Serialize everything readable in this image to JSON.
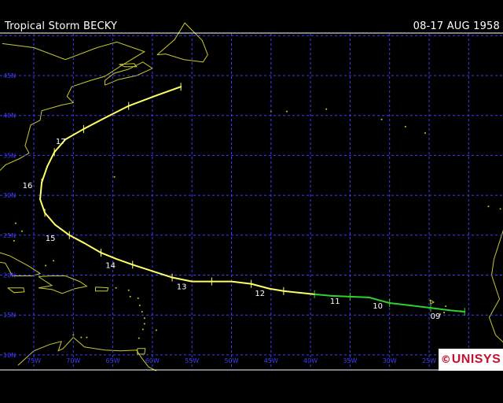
{
  "header": {
    "title": "Tropical Storm BECKY",
    "dates": "08-17 AUG 1958"
  },
  "map": {
    "lon_labels": [
      "75W",
      "70W",
      "65W",
      "60W",
      "55W",
      "50W",
      "45W",
      "40W",
      "35W",
      "30W",
      "25W"
    ],
    "lat_labels": [
      "45N",
      "40N",
      "35N",
      "30N",
      "25N",
      "20N",
      "15N",
      "10N"
    ],
    "grid_color": "#3c3cff",
    "coast_color": "#c8c832"
  },
  "track": {
    "legend_colors": {
      "tropical_depression": "#2fd12f",
      "tropical_storm": "#ffff66"
    },
    "points": [
      {
        "lon": -20.5,
        "lat": 15.4,
        "stage": "TD"
      },
      {
        "lon": -22.5,
        "lat": 15.6,
        "stage": "TD"
      },
      {
        "lon": -24.8,
        "lat": 15.9,
        "stage": "TD"
      },
      {
        "lon": -27.4,
        "lat": 16.2,
        "stage": "TD"
      },
      {
        "lon": -30.0,
        "lat": 16.5,
        "stage": "TD"
      },
      {
        "lon": -32.6,
        "lat": 17.2,
        "stage": "TD"
      },
      {
        "lon": -35.0,
        "lat": 17.3,
        "stage": "TD"
      },
      {
        "lon": -37.3,
        "lat": 17.4,
        "stage": "TD"
      },
      {
        "lon": -39.5,
        "lat": 17.6,
        "stage": "TD"
      },
      {
        "lon": -41.5,
        "lat": 17.8,
        "stage": "TS"
      },
      {
        "lon": -43.4,
        "lat": 18.0,
        "stage": "TS"
      },
      {
        "lon": -45.2,
        "lat": 18.3,
        "stage": "TS"
      },
      {
        "lon": -47.5,
        "lat": 18.9,
        "stage": "TS"
      },
      {
        "lon": -50.0,
        "lat": 19.2,
        "stage": "TS"
      },
      {
        "lon": -52.5,
        "lat": 19.2,
        "stage": "TS"
      },
      {
        "lon": -55.0,
        "lat": 19.2,
        "stage": "TS"
      },
      {
        "lon": -57.5,
        "lat": 19.7,
        "stage": "TS"
      },
      {
        "lon": -60.0,
        "lat": 20.5,
        "stage": "TS"
      },
      {
        "lon": -62.5,
        "lat": 21.3,
        "stage": "TS"
      },
      {
        "lon": -64.5,
        "lat": 22.0,
        "stage": "TS"
      },
      {
        "lon": -66.5,
        "lat": 22.8,
        "stage": "TS"
      },
      {
        "lon": -68.6,
        "lat": 24.0,
        "stage": "TS"
      },
      {
        "lon": -70.5,
        "lat": 25.0,
        "stage": "TS"
      },
      {
        "lon": -72.3,
        "lat": 26.3,
        "stage": "TS"
      },
      {
        "lon": -73.6,
        "lat": 27.8,
        "stage": "TS"
      },
      {
        "lon": -74.2,
        "lat": 29.5,
        "stage": "TS"
      },
      {
        "lon": -74.0,
        "lat": 31.6,
        "stage": "TS"
      },
      {
        "lon": -73.3,
        "lat": 33.6,
        "stage": "TS"
      },
      {
        "lon": -72.4,
        "lat": 35.4,
        "stage": "TS"
      },
      {
        "lon": -71.0,
        "lat": 37.0,
        "stage": "TS"
      },
      {
        "lon": -68.7,
        "lat": 38.3,
        "stage": "TS"
      },
      {
        "lon": -66.0,
        "lat": 39.7,
        "stage": "TS"
      },
      {
        "lon": -63.0,
        "lat": 41.2,
        "stage": "TS"
      },
      {
        "lon": -59.5,
        "lat": 42.5,
        "stage": "TS"
      },
      {
        "lon": -56.4,
        "lat": 43.6,
        "stage": "TS"
      }
    ],
    "day_labels": [
      {
        "label": "09",
        "lon": -24.2,
        "lat": 14.9
      },
      {
        "label": "10",
        "lon": -31.5,
        "lat": 16.2
      },
      {
        "label": "11",
        "lon": -36.9,
        "lat": 16.8
      },
      {
        "label": "12",
        "lon": -46.4,
        "lat": 17.8
      },
      {
        "label": "13",
        "lon": -56.3,
        "lat": 18.6
      },
      {
        "label": "14",
        "lon": -65.3,
        "lat": 21.3
      },
      {
        "label": "15",
        "lon": -72.9,
        "lat": 24.7
      },
      {
        "label": "16",
        "lon": -75.8,
        "lat": 31.3
      },
      {
        "label": "17",
        "lon": -71.6,
        "lat": 36.8
      }
    ]
  },
  "branding": {
    "copyright": "©",
    "logo": "UNISYS"
  }
}
